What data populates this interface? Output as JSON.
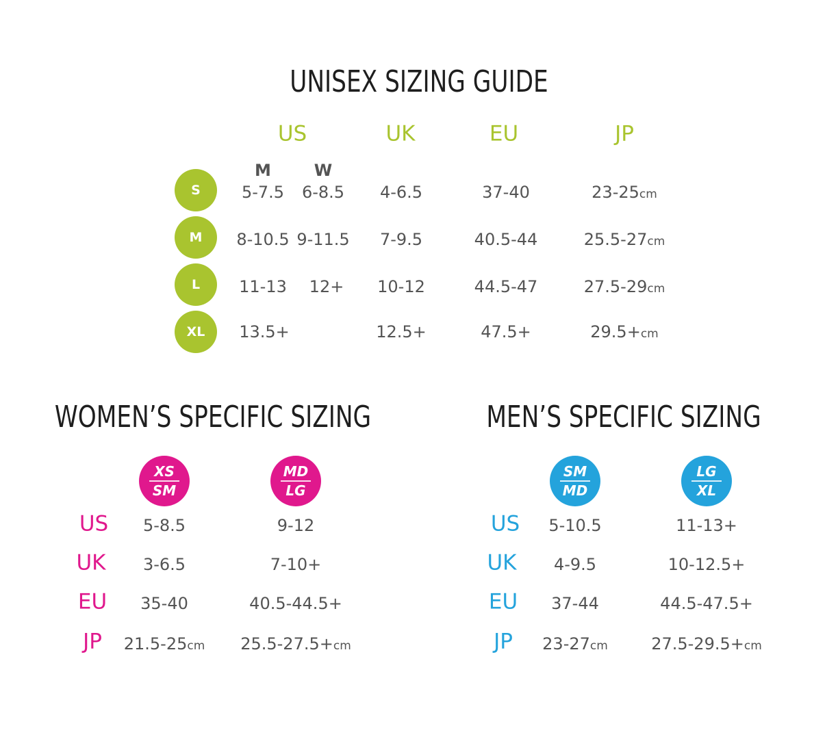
{
  "unisex": {
    "title": "UNISEX SIZING GUIDE",
    "headers": {
      "us": "US",
      "uk": "UK",
      "eu": "EU",
      "jp": "JP"
    },
    "subheaders": {
      "m": "M",
      "w": "W"
    },
    "rows": [
      {
        "size": "S",
        "us_m": "5-7.5",
        "us_w": "6-8.5",
        "uk": "4-6.5",
        "eu": "37-40",
        "jp": "23-25",
        "unit": "cm"
      },
      {
        "size": "M",
        "us_m": "8-10.5",
        "us_w": "9-11.5",
        "uk": "7-9.5",
        "eu": "40.5-44",
        "jp": "25.5-27",
        "unit": "cm"
      },
      {
        "size": "L",
        "us_m": "11-13",
        "us_w": "12+",
        "uk": "10-12",
        "eu": "44.5-47",
        "jp": "27.5-29",
        "unit": "cm"
      },
      {
        "size": "XL",
        "us_m": "13.5+",
        "us_w": "",
        "uk": "12.5+",
        "eu": "47.5+",
        "jp": "29.5+",
        "unit": "cm"
      }
    ]
  },
  "womens": {
    "title": "WOMEN’S SPECIFIC SIZING",
    "columns": [
      {
        "top": "XS",
        "bottom": "SM"
      },
      {
        "top": "MD",
        "bottom": "LG"
      }
    ],
    "rows": [
      {
        "label": "US",
        "c1": "5-8.5",
        "c2": "9-12",
        "unit": ""
      },
      {
        "label": "UK",
        "c1": "3-6.5",
        "c2": "7-10+",
        "unit": ""
      },
      {
        "label": "EU",
        "c1": "35-40",
        "c2": "40.5-44.5+",
        "unit": ""
      },
      {
        "label": "JP",
        "c1": "21.5-25",
        "c2": "25.5-27.5+",
        "unit": "cm"
      }
    ]
  },
  "mens": {
    "title": "MEN’S SPECIFIC SIZING",
    "columns": [
      {
        "top": "SM",
        "bottom": "MD"
      },
      {
        "top": "LG",
        "bottom": "XL"
      }
    ],
    "rows": [
      {
        "label": "US",
        "c1": "5-10.5",
        "c2": "11-13+",
        "unit": ""
      },
      {
        "label": "UK",
        "c1": "4-9.5",
        "c2": "10-12.5+",
        "unit": ""
      },
      {
        "label": "EU",
        "c1": "37-44",
        "c2": "44.5-47.5+",
        "unit": ""
      },
      {
        "label": "JP",
        "c1": "23-27",
        "c2": "27.5-29.5+",
        "unit": "cm"
      }
    ]
  },
  "colors": {
    "lime": "#a9c42f",
    "pink": "#e0188d",
    "blue": "#24a3dc",
    "text": "#545454",
    "title": "#1e1e1e"
  }
}
